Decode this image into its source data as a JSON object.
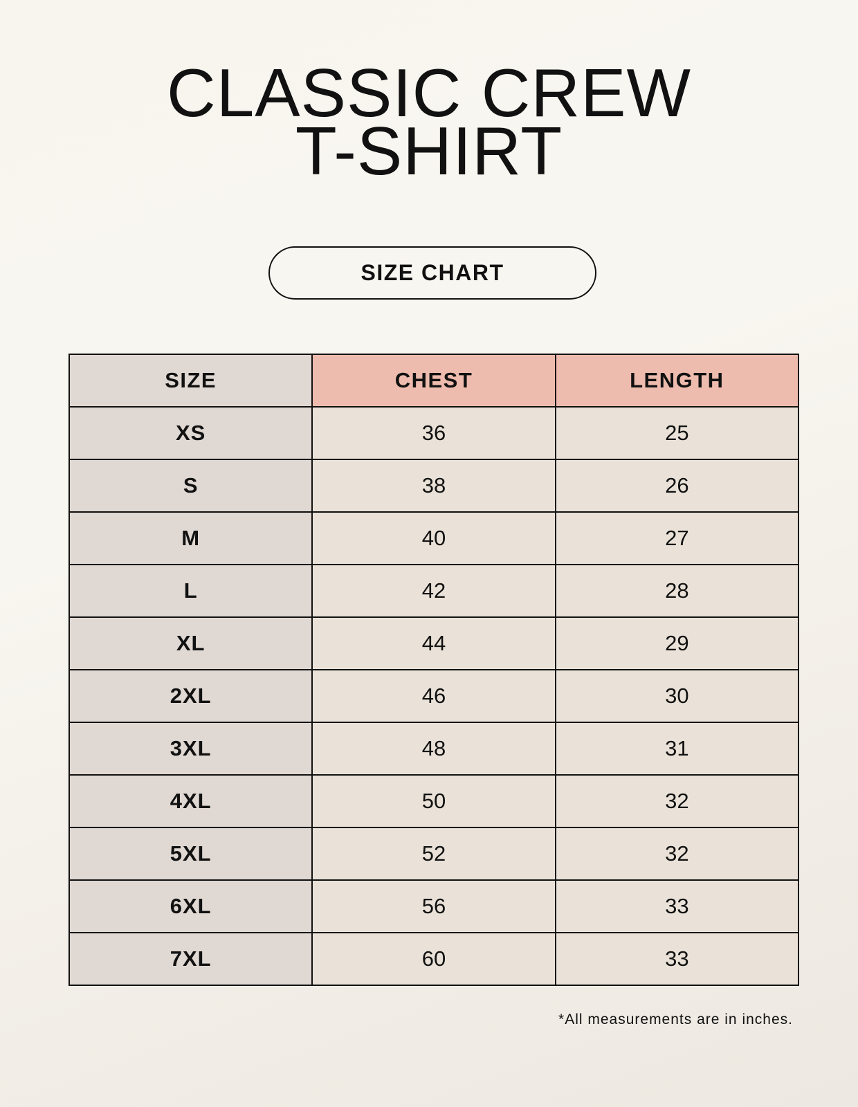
{
  "title": {
    "line1": "CLASSIC CREW",
    "line2": "T-SHIRT"
  },
  "badge": "SIZE CHART",
  "table": {
    "headers": [
      "SIZE",
      "CHEST",
      "LENGTH"
    ],
    "rows": [
      [
        "XS",
        "36",
        "25"
      ],
      [
        "S",
        "38",
        "26"
      ],
      [
        "M",
        "40",
        "27"
      ],
      [
        "L",
        "42",
        "28"
      ],
      [
        "XL",
        "44",
        "29"
      ],
      [
        "2XL",
        "46",
        "30"
      ],
      [
        "3XL",
        "48",
        "31"
      ],
      [
        "4XL",
        "50",
        "32"
      ],
      [
        "5XL",
        "52",
        "32"
      ],
      [
        "6XL",
        "56",
        "33"
      ],
      [
        "7XL",
        "60",
        "33"
      ]
    ]
  },
  "footnote": "*All measurements are in inches.",
  "colors": {
    "size_column": "#e0d8d2",
    "measure_header": "#eebcae",
    "value_cells": "#eae2d8"
  }
}
